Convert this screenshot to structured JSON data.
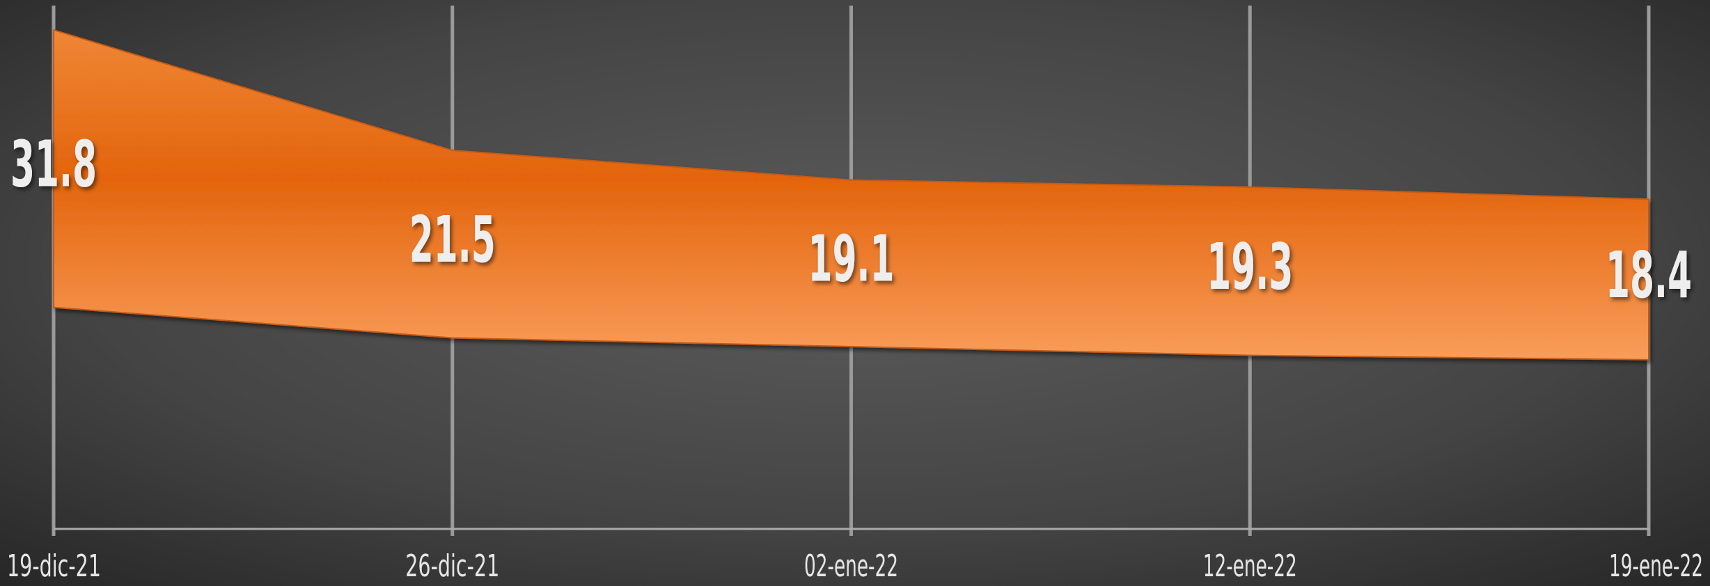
{
  "chart_data": {
    "type": "stacked_area",
    "categories": [
      "19-dic-21",
      "26-dic-21",
      "02-ene-22",
      "12-ene-22",
      "19-ene-22"
    ],
    "series": [
      {
        "color": "none",
        "values": [
          25.4,
          21.9,
          20.9,
          19.9,
          19.4
        ]
      },
      {
        "color": "#e8680f",
        "values": [
          31.8,
          21.5,
          19.1,
          19.3,
          18.4
        ]
      }
    ],
    "ylim": [
      0,
      60
    ],
    "grid": true
  }
}
